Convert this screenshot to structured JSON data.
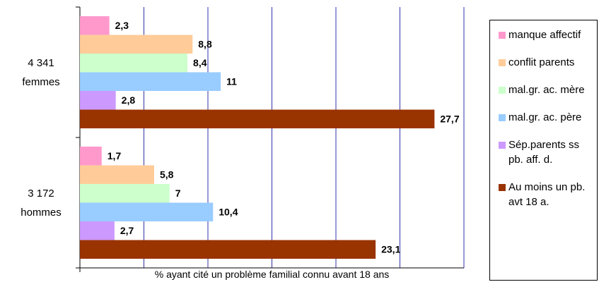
{
  "chart_data": {
    "type": "bar",
    "orientation": "horizontal",
    "x_label": "% ayant cité un problème familial connu  avant 18 ans",
    "categories": [
      "4 341 femmes",
      "3 172 hommes"
    ],
    "series": [
      {
        "name": "manque affectif",
        "color": "#ff99cc",
        "values": [
          2.3,
          1.7
        ],
        "value_labels": [
          "2,3",
          "1,7"
        ]
      },
      {
        "name": "conflit parents",
        "color": "#ffcc99",
        "values": [
          8.8,
          5.8
        ],
        "value_labels": [
          "8,8",
          "5,8"
        ]
      },
      {
        "name": "mal.gr. ac. mère",
        "color": "#ccffcc",
        "values": [
          8.4,
          7
        ],
        "value_labels": [
          "8,4",
          "7"
        ]
      },
      {
        "name": "mal.gr. ac. père",
        "color": "#99ccff",
        "values": [
          11,
          10.4
        ],
        "value_labels": [
          "11",
          "10,4"
        ]
      },
      {
        "name": "Sép.parents ss pb. aff. d.",
        "color": "#cc99ff",
        "values": [
          2.8,
          2.7
        ],
        "value_labels": [
          "2,8",
          "2,7"
        ]
      },
      {
        "name": "Au moins un pb. avt 18 a.",
        "color": "#993300",
        "values": [
          27.7,
          23.1
        ],
        "value_labels": [
          "27,7",
          "23,1"
        ]
      }
    ],
    "xlim": [
      0,
      30
    ],
    "xticks": [
      0,
      5,
      10,
      15,
      20,
      25,
      30
    ],
    "grid": true,
    "legend": "right"
  }
}
